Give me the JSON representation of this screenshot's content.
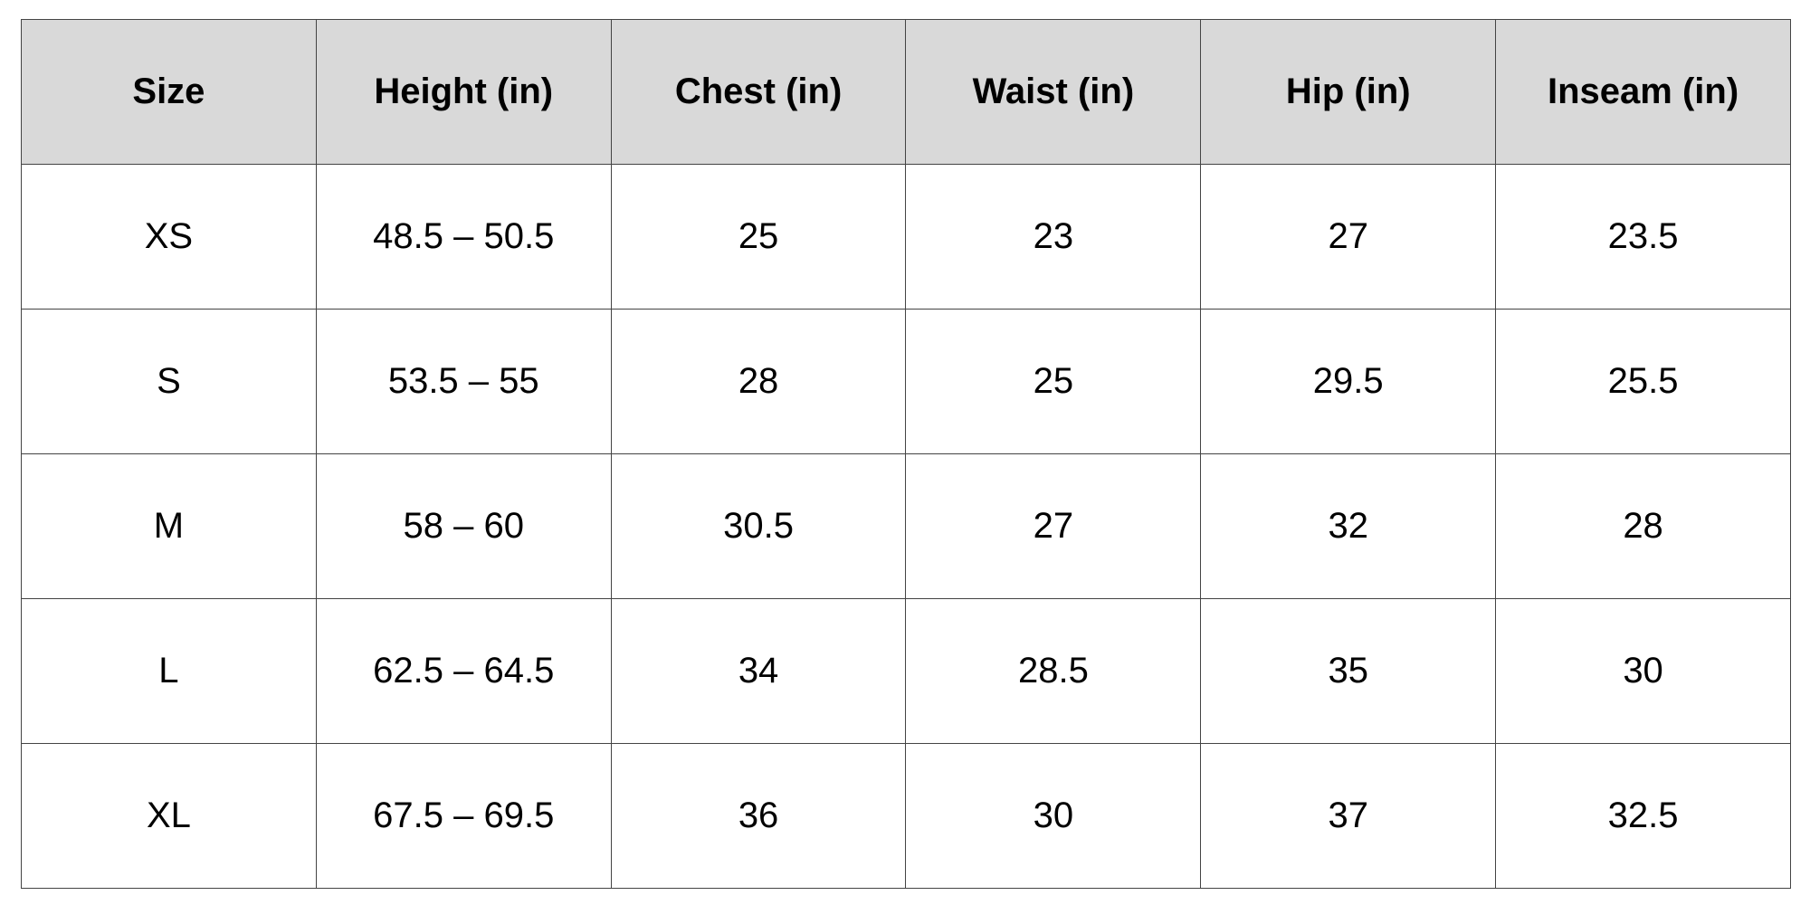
{
  "table": {
    "headers": [
      "Size",
      "Height (in)",
      "Chest (in)",
      "Waist (in)",
      "Hip (in)",
      "Inseam (in)"
    ],
    "rows": [
      [
        "XS",
        "48.5 – 50.5",
        "25",
        "23",
        "27",
        "23.5"
      ],
      [
        "S",
        "53.5 – 55",
        "28",
        "25",
        "29.5",
        "25.5"
      ],
      [
        "M",
        "58 – 60",
        "30.5",
        "27",
        "32",
        "28"
      ],
      [
        "L",
        "62.5 – 64.5",
        "34",
        "28.5",
        "35",
        "30"
      ],
      [
        "XL",
        "67.5 – 69.5",
        "36",
        "30",
        "37",
        "32.5"
      ]
    ]
  },
  "colors": {
    "header_background": "#d9d9d9",
    "border": "#444444",
    "text": "#000000"
  }
}
